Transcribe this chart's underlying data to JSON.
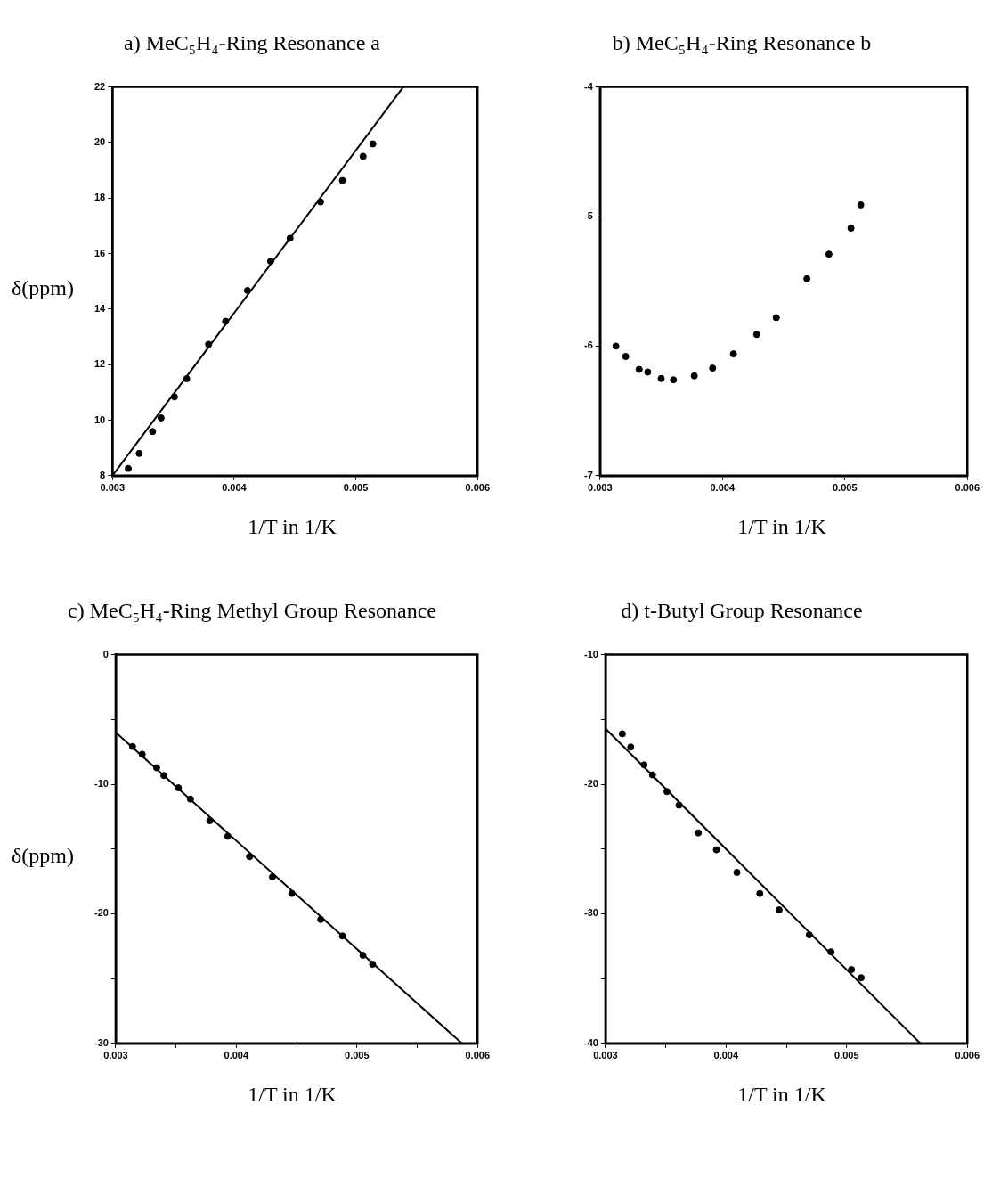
{
  "chart_data": [
    {
      "type": "scatter",
      "title": "a)  MeC₅H₄-Ring Resonance a",
      "xlabel": "1/T in 1/K",
      "ylabel": "δ(ppm)",
      "xlim": [
        0.003,
        0.006
      ],
      "xticks": [
        0.003,
        0.004,
        0.005,
        0.006
      ],
      "ylim": [
        8,
        22
      ],
      "yticks": [
        8,
        10,
        12,
        14,
        16,
        18,
        20,
        22
      ],
      "series": [
        {
          "marker": "circle",
          "color": "#000000",
          "x": [
            0.00313,
            0.00322,
            0.00333,
            0.0034,
            0.00351,
            0.00361,
            0.00379,
            0.00393,
            0.00411,
            0.0043,
            0.00446,
            0.00471,
            0.00489,
            0.00506,
            0.00514
          ],
          "values": [
            8.26,
            8.8,
            9.59,
            10.08,
            10.84,
            11.49,
            12.73,
            13.56,
            14.67,
            15.72,
            16.55,
            17.86,
            18.63,
            19.5,
            19.95
          ]
        },
        {
          "type": "line",
          "color": "#000000",
          "x": [
            0.003,
            0.00539
          ],
          "values": [
            8,
            22
          ]
        }
      ]
    },
    {
      "type": "scatter",
      "title": "b)  MeC₅H₄-Ring Resonance b",
      "xlabel": "1/T in 1/K",
      "xlim": [
        0.003,
        0.006
      ],
      "xticks": [
        0.003,
        0.004,
        0.005,
        0.006
      ],
      "ylim": [
        -7,
        -4
      ],
      "yticks": [
        -7,
        -6,
        -5,
        -4
      ],
      "series": [
        {
          "marker": "circle",
          "color": "#000000",
          "x": [
            0.00313,
            0.00321,
            0.00332,
            0.00339,
            0.0035,
            0.0036,
            0.00377,
            0.00392,
            0.00409,
            0.00428,
            0.00444,
            0.00469,
            0.00487,
            0.00505,
            0.00513
          ],
          "values": [
            -6.0,
            -6.08,
            -6.18,
            -6.2,
            -6.25,
            -6.26,
            -6.23,
            -6.17,
            -6.06,
            -5.91,
            -5.78,
            -5.48,
            -5.29,
            -5.09,
            -4.91
          ]
        }
      ]
    },
    {
      "type": "scatter",
      "title": "c)  MeC₅H₄-Ring Methyl Group Resonance",
      "xlabel": "1/T in 1/K",
      "ylabel": "δ(ppm)",
      "xlim": [
        0.003,
        0.006
      ],
      "xticks": [
        0.003,
        {
          "value": 0.0035,
          "label": null
        },
        0.004,
        {
          "value": 0.0045,
          "label": null
        },
        0.005,
        {
          "value": 0.0055,
          "label": null
        },
        0.006
      ],
      "ylim": [
        -30,
        0
      ],
      "yticks": [
        -30,
        {
          "value": -25,
          "label": null
        },
        -20,
        {
          "value": -15,
          "label": null
        },
        -10,
        {
          "value": -5,
          "label": null
        },
        0
      ],
      "series": [
        {
          "marker": "circle",
          "color": "#000000",
          "x": [
            0.00314,
            0.00322,
            0.00334,
            0.0034,
            0.00352,
            0.00362,
            0.00378,
            0.00393,
            0.00411,
            0.0043,
            0.00446,
            0.0047,
            0.00488,
            0.00505,
            0.00513
          ],
          "values": [
            -7.09,
            -7.69,
            -8.73,
            -9.33,
            -10.28,
            -11.15,
            -12.82,
            -14.02,
            -15.59,
            -17.16,
            -18.43,
            -20.44,
            -21.71,
            -23.21,
            -23.9
          ]
        },
        {
          "type": "line",
          "color": "#000000",
          "x": [
            0.003,
            0.00587
          ],
          "values": [
            -6,
            -30
          ]
        }
      ]
    },
    {
      "type": "scatter",
      "title": "d)  t-Butyl Group Resonance",
      "xlabel": "1/T in 1/K",
      "xlim": [
        0.003,
        0.006
      ],
      "xticks": [
        0.003,
        {
          "value": 0.0035,
          "label": null
        },
        0.004,
        {
          "value": 0.0045,
          "label": null
        },
        0.005,
        {
          "value": 0.0055,
          "label": null
        },
        0.006
      ],
      "ylim": [
        -40,
        -10
      ],
      "yticks": [
        -40,
        {
          "value": -35,
          "label": null
        },
        -30,
        {
          "value": -25,
          "label": null
        },
        -20,
        {
          "value": -15,
          "label": null
        },
        -10
      ],
      "series": [
        {
          "marker": "circle",
          "color": "#000000",
          "x": [
            0.00314,
            0.00321,
            0.00332,
            0.00339,
            0.00351,
            0.00361,
            0.00377,
            0.00392,
            0.00409,
            0.00428,
            0.00444,
            0.00469,
            0.00487,
            0.00504,
            0.00512
          ],
          "values": [
            -16.11,
            -17.13,
            -18.51,
            -19.28,
            -20.57,
            -21.62,
            -23.76,
            -25.06,
            -26.81,
            -28.44,
            -29.7,
            -31.63,
            -32.94,
            -34.31,
            -34.94
          ]
        },
        {
          "type": "line",
          "color": "#000000",
          "x": [
            0.003,
            0.00561
          ],
          "values": [
            -15.7,
            -40
          ]
        }
      ]
    }
  ]
}
